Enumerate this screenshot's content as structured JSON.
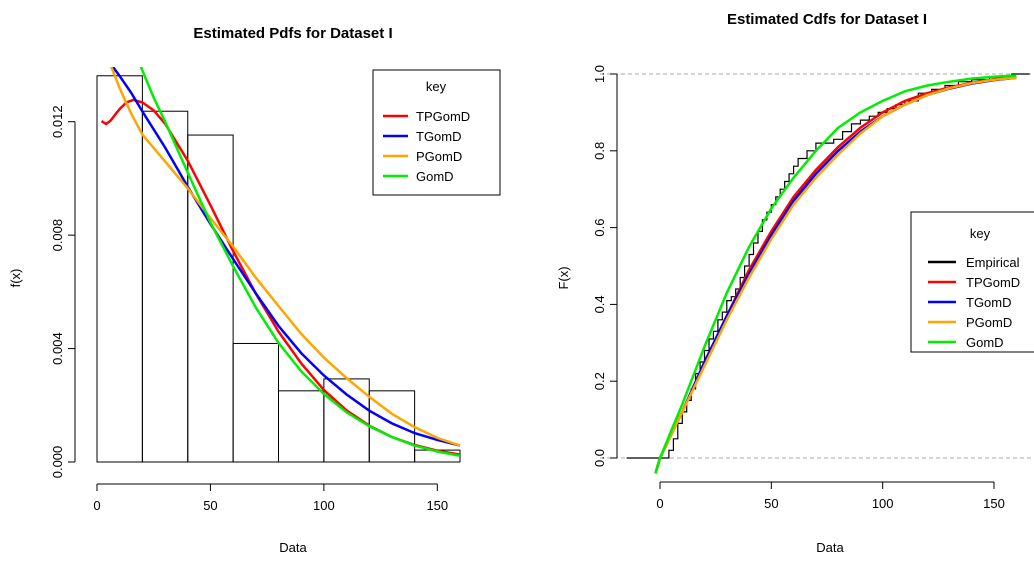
{
  "chart_data": [
    {
      "type": "histogram",
      "title": "Estimated Pdfs for Dataset I",
      "xlabel": "Data",
      "ylabel": "f(x)",
      "xlim": [
        0,
        160
      ],
      "ylim": [
        0,
        0.014
      ],
      "xticks": [
        0,
        50,
        100,
        150
      ],
      "xtick_labels": [
        "0",
        "50",
        "100",
        "150"
      ],
      "yticks": [
        0,
        0.004,
        0.008,
        0.012
      ],
      "ytick_labels": [
        "0.000",
        "0.004",
        "0.008",
        "0.012"
      ],
      "bins": [
        {
          "x0": 0,
          "x1": 20,
          "density": 0.01362
        },
        {
          "x0": 20,
          "x1": 40,
          "density": 0.01237
        },
        {
          "x0": 40,
          "x1": 60,
          "density": 0.01153
        },
        {
          "x0": 60,
          "x1": 80,
          "density": 0.00418
        },
        {
          "x0": 80,
          "x1": 100,
          "density": 0.00251
        },
        {
          "x0": 100,
          "x1": 120,
          "density": 0.00293
        },
        {
          "x0": 120,
          "x1": 140,
          "density": 0.00251
        },
        {
          "x0": 140,
          "x1": 160,
          "density": 0.00042
        }
      ],
      "legend": {
        "title": "key",
        "position": "top-right",
        "entries": [
          {
            "label": "TPGomD",
            "color": "#ff0000"
          },
          {
            "label": "TGomD",
            "color": "#0000ff"
          },
          {
            "label": "PGomD",
            "color": "#ffa500"
          },
          {
            "label": "GomD",
            "color": "#00ee00"
          }
        ]
      },
      "series": [
        {
          "name": "TPGomD",
          "color": "#ff0000",
          "x": [
            2,
            4,
            6,
            8,
            10,
            13,
            16,
            20,
            25,
            30,
            40,
            50,
            60,
            70,
            80,
            90,
            100,
            110,
            120,
            130,
            140,
            150,
            160
          ],
          "y": [
            0.01202,
            0.01192,
            0.01204,
            0.01225,
            0.01245,
            0.01268,
            0.01277,
            0.01268,
            0.0124,
            0.01193,
            0.01062,
            0.00906,
            0.00744,
            0.00594,
            0.0046,
            0.00348,
            0.00254,
            0.00182,
            0.00128,
            0.00088,
            0.0006,
            0.0004,
            0.00026
          ]
        },
        {
          "name": "TGomD",
          "color": "#0000ff",
          "x": [
            6,
            10,
            15,
            20,
            30,
            40,
            50,
            60,
            70,
            80,
            90,
            100,
            110,
            120,
            130,
            140,
            150,
            160
          ],
          "y": [
            0.01405,
            0.01361,
            0.01303,
            0.01236,
            0.01109,
            0.0097,
            0.0084,
            0.00716,
            0.00595,
            0.0048,
            0.00384,
            0.00305,
            0.00238,
            0.00181,
            0.00136,
            0.00102,
            0.00078,
            0.00058
          ]
        },
        {
          "name": "PGomD",
          "color": "#ffa500",
          "x": [
            6,
            10,
            15,
            20,
            30,
            40,
            50,
            60,
            70,
            80,
            90,
            100,
            110,
            120,
            130,
            140,
            150,
            160
          ],
          "y": [
            0.014,
            0.01318,
            0.0123,
            0.01155,
            0.0106,
            0.00965,
            0.0086,
            0.0076,
            0.0065,
            0.0055,
            0.00452,
            0.00368,
            0.00296,
            0.0023,
            0.0017,
            0.00123,
            0.00085,
            0.00058
          ]
        },
        {
          "name": "GomD",
          "color": "#00ee00",
          "x": [
            19,
            25,
            30,
            40,
            50,
            60,
            70,
            80,
            90,
            100,
            110,
            120,
            130,
            140,
            150,
            160
          ],
          "y": [
            0.014,
            0.01285,
            0.012,
            0.0102,
            0.00845,
            0.0069,
            0.00545,
            0.0042,
            0.0032,
            0.0024,
            0.00175,
            0.00126,
            0.00088,
            0.00058,
            0.00037,
            0.00022
          ]
        }
      ]
    },
    {
      "type": "line",
      "title": "Estimated Cdfs for Dataset I",
      "xlabel": "Data",
      "ylabel": "F(x)",
      "xlim": [
        -15,
        165
      ],
      "ylim": [
        0,
        1
      ],
      "xticks": [
        0,
        50,
        100,
        150
      ],
      "xtick_labels": [
        "0",
        "50",
        "100",
        "150"
      ],
      "yticks": [
        0,
        0.2,
        0.4,
        0.6,
        0.8,
        1.0
      ],
      "ytick_labels": [
        "0.0",
        "0.2",
        "0.4",
        "0.6",
        "0.8",
        "1.0"
      ],
      "reference_lines": [
        0,
        1
      ],
      "legend": {
        "title": "key",
        "position": "center-right",
        "entries": [
          {
            "label": "Empirical",
            "color": "#000000"
          },
          {
            "label": "TPGomD",
            "color": "#ff0000"
          },
          {
            "label": "TGomD",
            "color": "#0000ff"
          },
          {
            "label": "PGomD",
            "color": "#ffa500"
          },
          {
            "label": "GomD",
            "color": "#00ee00"
          }
        ]
      },
      "empirical": {
        "name": "Empirical",
        "color": "#000000",
        "x": [
          4,
          6,
          8,
          10,
          12,
          14,
          16,
          18,
          20,
          22,
          24,
          26,
          28,
          30,
          32,
          34,
          36,
          38,
          40,
          42,
          44,
          46,
          48,
          50,
          52,
          54,
          56,
          58,
          60,
          62,
          66,
          70,
          74,
          78,
          82,
          86,
          90,
          94,
          98,
          102,
          106,
          110,
          116,
          122,
          128,
          134,
          140,
          148,
          158,
          166
        ],
        "y": [
          0.02,
          0.05,
          0.09,
          0.12,
          0.15,
          0.18,
          0.22,
          0.25,
          0.28,
          0.31,
          0.33,
          0.36,
          0.38,
          0.41,
          0.42,
          0.44,
          0.47,
          0.5,
          0.53,
          0.56,
          0.59,
          0.62,
          0.64,
          0.66,
          0.68,
          0.7,
          0.72,
          0.74,
          0.76,
          0.78,
          0.8,
          0.82,
          0.82,
          0.83,
          0.85,
          0.87,
          0.88,
          0.89,
          0.9,
          0.91,
          0.92,
          0.93,
          0.95,
          0.96,
          0.97,
          0.98,
          0.985,
          0.99,
          1.0,
          1.0
        ]
      },
      "series": [
        {
          "name": "TPGomD",
          "color": "#ff0000",
          "x": [
            -2,
            0,
            5,
            10,
            20,
            30,
            40,
            50,
            60,
            70,
            80,
            90,
            100,
            110,
            120,
            130,
            140,
            150,
            160
          ],
          "y": [
            -0.04,
            0.0,
            0.06,
            0.12,
            0.25,
            0.37,
            0.49,
            0.59,
            0.68,
            0.75,
            0.81,
            0.86,
            0.9,
            0.93,
            0.95,
            0.965,
            0.977,
            0.985,
            0.99
          ]
        },
        {
          "name": "TGomD",
          "color": "#0000ff",
          "x": [
            -2,
            0,
            5,
            10,
            20,
            30,
            40,
            50,
            60,
            70,
            80,
            90,
            100,
            110,
            120,
            130,
            140,
            150,
            160
          ],
          "y": [
            -0.04,
            0.0,
            0.06,
            0.12,
            0.25,
            0.37,
            0.48,
            0.58,
            0.67,
            0.74,
            0.8,
            0.85,
            0.89,
            0.92,
            0.945,
            0.962,
            0.975,
            0.984,
            0.99
          ]
        },
        {
          "name": "PGomD",
          "color": "#ffa500",
          "x": [
            -2,
            0,
            5,
            10,
            20,
            30,
            40,
            50,
            60,
            70,
            80,
            90,
            100,
            110,
            120,
            130,
            140,
            150,
            160
          ],
          "y": [
            -0.04,
            0.0,
            0.06,
            0.12,
            0.24,
            0.36,
            0.47,
            0.57,
            0.66,
            0.73,
            0.79,
            0.845,
            0.89,
            0.92,
            0.945,
            0.963,
            0.976,
            0.985,
            0.99
          ]
        },
        {
          "name": "GomD",
          "color": "#00ee00",
          "x": [
            -2,
            0,
            5,
            10,
            20,
            30,
            40,
            50,
            60,
            70,
            80,
            90,
            100,
            110,
            120,
            130,
            140,
            150,
            160
          ],
          "y": [
            -0.04,
            0.0,
            0.07,
            0.14,
            0.29,
            0.43,
            0.55,
            0.65,
            0.73,
            0.8,
            0.86,
            0.9,
            0.93,
            0.955,
            0.97,
            0.98,
            0.988,
            0.993,
            0.996
          ]
        }
      ]
    }
  ]
}
